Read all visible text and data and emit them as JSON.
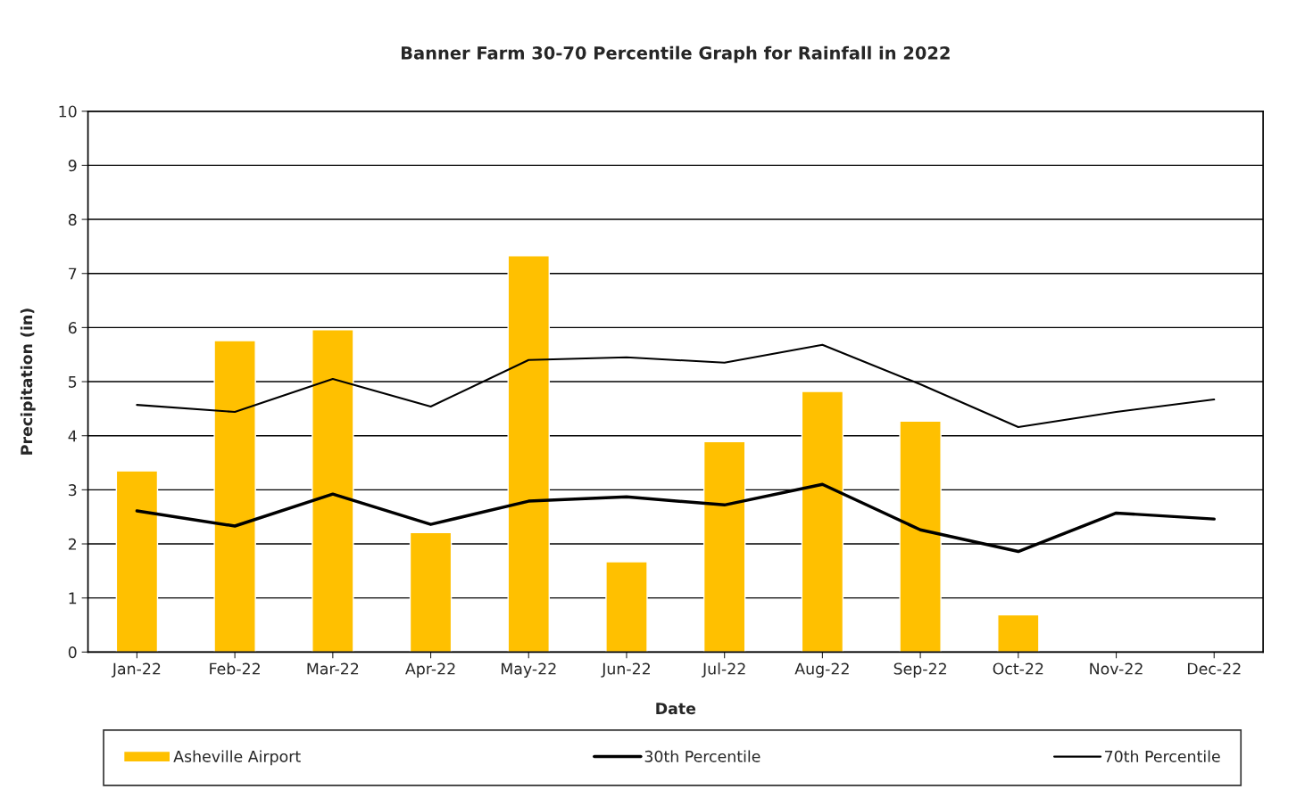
{
  "chart_data": {
    "type": "bar",
    "title": "Banner Farm 30-70 Percentile Graph for Rainfall in 2022",
    "xlabel": "Date",
    "ylabel": "Precipitation (in)",
    "categories": [
      "Jan-22",
      "Feb-22",
      "Mar-22",
      "Apr-22",
      "May-22",
      "Jun-22",
      "Jul-22",
      "Aug-22",
      "Sep-22",
      "Oct-22",
      "Nov-22",
      "Dec-22"
    ],
    "series": [
      {
        "name": "Asheville Airport",
        "color": "#ffc000",
        "values": [
          3.35,
          5.76,
          5.96,
          2.21,
          7.33,
          1.67,
          3.89,
          4.82,
          4.27,
          0.69,
          null,
          null
        ]
      },
      {
        "name": "30th Percentile",
        "type": "line",
        "color": "#000000",
        "values": [
          2.61,
          2.33,
          2.92,
          2.36,
          2.79,
          2.87,
          2.72,
          3.1,
          2.26,
          1.86,
          2.57,
          2.46
        ]
      },
      {
        "name": "70th Percentile",
        "type": "line",
        "color": "#000000",
        "values": [
          4.57,
          4.44,
          5.05,
          4.54,
          5.4,
          5.45,
          5.35,
          5.68,
          4.95,
          4.16,
          4.44,
          4.67
        ]
      }
    ],
    "ylim": [
      0,
      10
    ],
    "yticks": [
      0,
      1,
      2,
      3,
      4,
      5,
      6,
      7,
      8,
      9,
      10
    ],
    "grid": "y",
    "legend": "bottom",
    "marker": "none",
    "line_style": "solid"
  }
}
